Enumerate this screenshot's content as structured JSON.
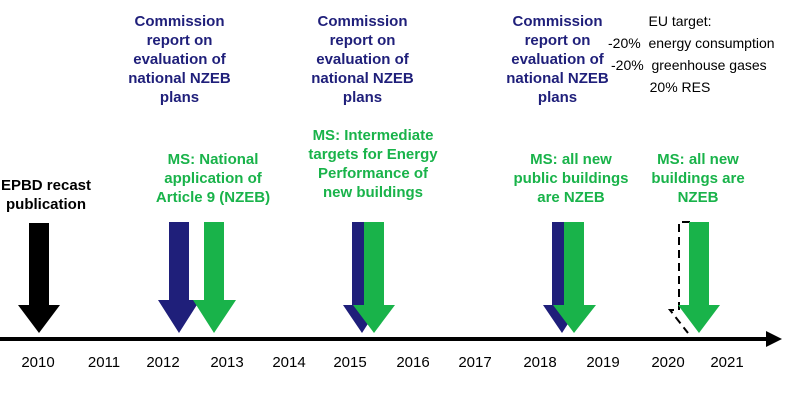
{
  "milestones": {
    "epbd": "EPBD recast\npublication",
    "commission_1": "Commission\nreport on\nevaluation of\nnational NZEB\nplans",
    "commission_2": "Commission\nreport on\nevaluation of\nnational NZEB\nplans",
    "commission_3": "Commission\nreport on\nevaluation of\nnational NZEB\nplans",
    "ms_1": "MS: National\napplication of\nArticle 9 (NZEB)",
    "ms_2": "MS: Intermediate\ntargets for Energy\nPerformance of\nnew buildings",
    "ms_3": "MS: all new\npublic buildings\nare NZEB",
    "ms_4": "MS: all new\nbuildings are\nNZEB"
  },
  "eu_target": {
    "title": "EU target:",
    "line1": "-20%  energy consumption",
    "line2": "-20%  greenhouse gases",
    "line3": "20% RES"
  },
  "years": [
    "2010",
    "2011",
    "2012",
    "2013",
    "2014",
    "2015",
    "2016",
    "2017",
    "2018",
    "2019",
    "2020",
    "2021"
  ],
  "colors": {
    "navy": "#1f1f7a",
    "green": "#19b34a",
    "black": "#000000"
  }
}
